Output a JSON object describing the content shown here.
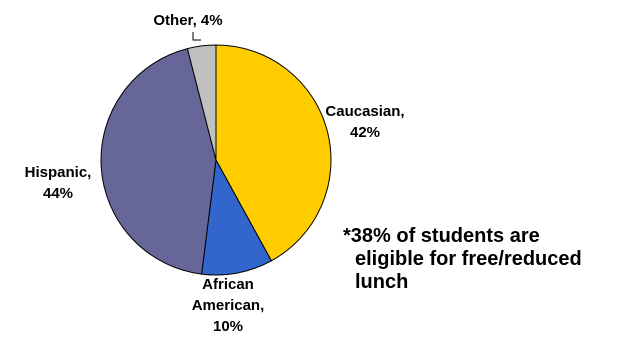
{
  "chart_data": {
    "type": "pie",
    "slices": [
      {
        "label": "Caucasian",
        "value": 42,
        "label_lines": [
          "Caucasian,",
          "42%"
        ],
        "color": "#FFCC00"
      },
      {
        "label": "African American",
        "value": 10,
        "label_lines": [
          "African",
          "American,",
          "10%"
        ],
        "color": "#3366CC"
      },
      {
        "label": "Hispanic",
        "value": 44,
        "label_lines": [
          "Hispanic,",
          "44%"
        ],
        "color": "#666699"
      },
      {
        "label": "Other",
        "value": 4,
        "label_lines": [
          "Other, 4%"
        ],
        "color": "#C0C0C0"
      }
    ],
    "start": "12 o'clock",
    "direction": "clockwise",
    "legend": "none",
    "title": ""
  },
  "note": {
    "line1": "*38% of students are",
    "line2": "eligible for free/reduced",
    "line3": "lunch"
  }
}
